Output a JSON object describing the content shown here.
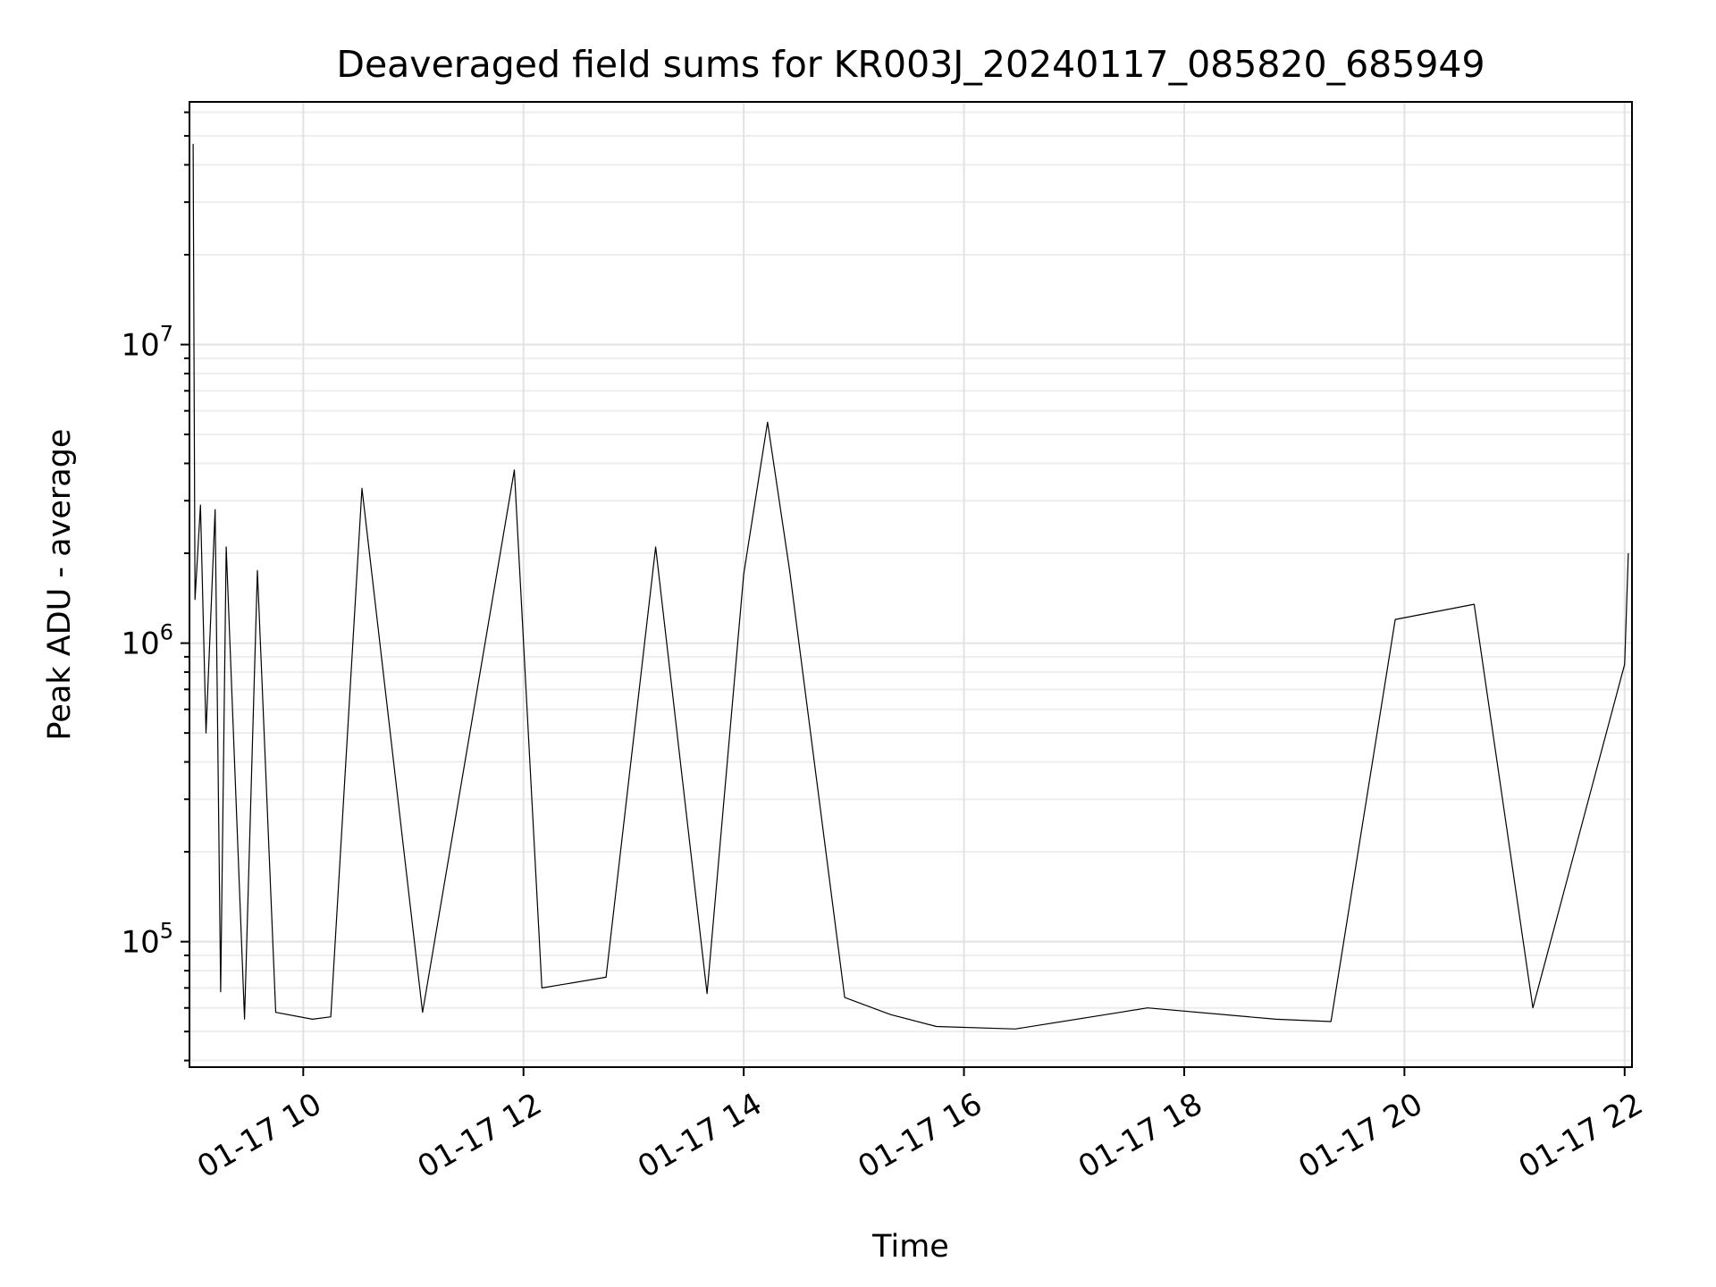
{
  "chart_data": {
    "type": "line",
    "title": "Deaveraged field sums for KR003J_20240117_085820_685949",
    "xlabel": "Time",
    "ylabel": "Peak ADU - average",
    "yscale": "log",
    "grid": true,
    "line_color": "#000000",
    "xlim": [
      "2024-01-17 08:58",
      "2024-01-17 22:04"
    ],
    "ylim": [
      38000,
      65000000
    ],
    "xticks": [
      {
        "value": "2024-01-17 10:00",
        "label": "01-17 10"
      },
      {
        "value": "2024-01-17 12:00",
        "label": "01-17 12"
      },
      {
        "value": "2024-01-17 14:00",
        "label": "01-17 14"
      },
      {
        "value": "2024-01-17 16:00",
        "label": "01-17 16"
      },
      {
        "value": "2024-01-17 18:00",
        "label": "01-17 18"
      },
      {
        "value": "2024-01-17 20:00",
        "label": "01-17 20"
      },
      {
        "value": "2024-01-17 22:00",
        "label": "01-17 22"
      }
    ],
    "yticks": [
      {
        "value": 100000,
        "base": "10",
        "exp": "5"
      },
      {
        "value": 1000000,
        "base": "10",
        "exp": "6"
      },
      {
        "value": 10000000,
        "base": "10",
        "exp": "7"
      }
    ],
    "series": [
      {
        "points": [
          [
            "2024-01-17 09:00",
            47000000
          ],
          [
            "2024-01-17 09:01",
            1400000
          ],
          [
            "2024-01-17 09:04",
            2900000
          ],
          [
            "2024-01-17 09:07",
            500000
          ],
          [
            "2024-01-17 09:12",
            2800000
          ],
          [
            "2024-01-17 09:15",
            68000
          ],
          [
            "2024-01-17 09:18",
            2100000
          ],
          [
            "2024-01-17 09:28",
            55000
          ],
          [
            "2024-01-17 09:35",
            1750000
          ],
          [
            "2024-01-17 09:45",
            58000
          ],
          [
            "2024-01-17 10:05",
            55000
          ],
          [
            "2024-01-17 10:15",
            56000
          ],
          [
            "2024-01-17 10:32",
            3300000
          ],
          [
            "2024-01-17 11:05",
            58000
          ],
          [
            "2024-01-17 11:55",
            3800000
          ],
          [
            "2024-01-17 12:10",
            70000
          ],
          [
            "2024-01-17 12:45",
            76000
          ],
          [
            "2024-01-17 13:12",
            2100000
          ],
          [
            "2024-01-17 13:40",
            67000
          ],
          [
            "2024-01-17 14:00",
            1700000
          ],
          [
            "2024-01-17 14:13",
            5500000
          ],
          [
            "2024-01-17 14:25",
            1750000
          ],
          [
            "2024-01-17 14:55",
            65000
          ],
          [
            "2024-01-17 15:20",
            57000
          ],
          [
            "2024-01-17 15:45",
            52000
          ],
          [
            "2024-01-17 16:28",
            51000
          ],
          [
            "2024-01-17 17:25",
            58000
          ],
          [
            "2024-01-17 17:40",
            60000
          ],
          [
            "2024-01-17 18:50",
            55000
          ],
          [
            "2024-01-17 19:20",
            54000
          ],
          [
            "2024-01-17 19:55",
            1200000
          ],
          [
            "2024-01-17 20:38",
            1350000
          ],
          [
            "2024-01-17 21:10",
            60000
          ],
          [
            "2024-01-17 22:00",
            850000
          ],
          [
            "2024-01-17 22:02",
            2000000
          ]
        ]
      }
    ]
  }
}
